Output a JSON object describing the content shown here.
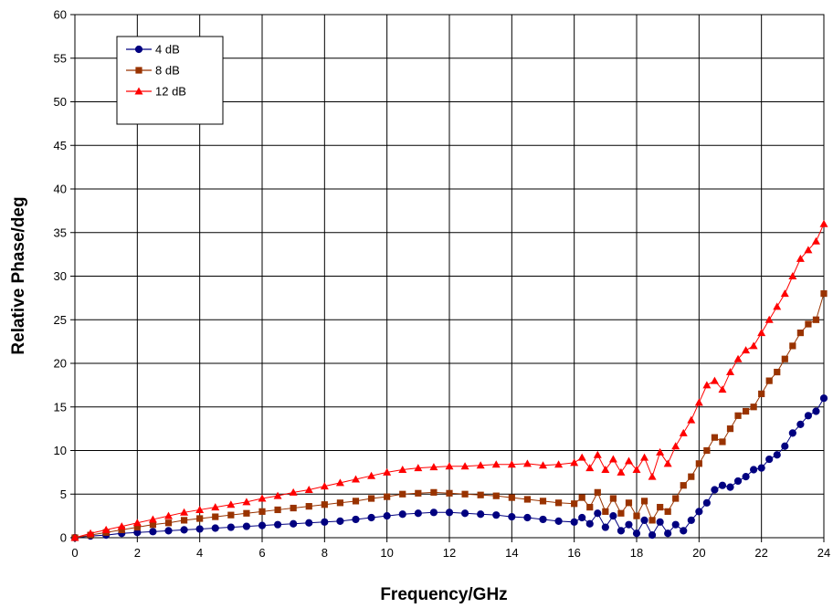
{
  "chart_data": {
    "type": "line",
    "title": "",
    "xlabel": "Frequency/GHz",
    "ylabel": "Relative Phase/deg",
    "xlim": [
      0,
      24
    ],
    "ylim": [
      0,
      60
    ],
    "x_ticks": [
      0,
      2,
      4,
      6,
      8,
      10,
      12,
      14,
      16,
      18,
      20,
      22,
      24
    ],
    "y_ticks": [
      0,
      5,
      10,
      15,
      20,
      25,
      30,
      35,
      40,
      45,
      50,
      55,
      60
    ],
    "grid": true,
    "legend_position": "top-left",
    "series": [
      {
        "name": "4 dB",
        "color": "#000080",
        "marker": "circle",
        "x": [
          0,
          0.5,
          1,
          1.5,
          2,
          2.5,
          3,
          3.5,
          4,
          4.5,
          5,
          5.5,
          6,
          6.5,
          7,
          7.5,
          8,
          8.5,
          9,
          9.5,
          10,
          10.5,
          11,
          11.5,
          12,
          12.5,
          13,
          13.5,
          14,
          14.5,
          15,
          15.5,
          16,
          16.25,
          16.5,
          16.75,
          17,
          17.25,
          17.5,
          17.75,
          18,
          18.25,
          18.5,
          18.75,
          19,
          19.25,
          19.5,
          19.75,
          20,
          20.25,
          20.5,
          20.75,
          21,
          21.25,
          21.5,
          21.75,
          22,
          22.25,
          22.5,
          22.75,
          23,
          23.25,
          23.5,
          23.75,
          24
        ],
        "y": [
          0,
          0.2,
          0.3,
          0.5,
          0.6,
          0.7,
          0.8,
          0.9,
          1.0,
          1.1,
          1.2,
          1.3,
          1.4,
          1.5,
          1.6,
          1.7,
          1.8,
          1.9,
          2.1,
          2.3,
          2.5,
          2.7,
          2.8,
          2.9,
          2.9,
          2.8,
          2.7,
          2.6,
          2.4,
          2.3,
          2.1,
          1.9,
          1.8,
          2.3,
          1.6,
          2.8,
          1.2,
          2.5,
          0.8,
          1.5,
          0.5,
          2.0,
          0.3,
          1.8,
          0.5,
          1.5,
          0.8,
          2.0,
          3.0,
          4.0,
          5.5,
          6.0,
          5.8,
          6.5,
          7.0,
          7.8,
          8.0,
          9.0,
          9.5,
          10.5,
          12.0,
          13.0,
          14.0,
          14.5,
          16.0
        ]
      },
      {
        "name": "8 dB",
        "color": "#993300",
        "marker": "square",
        "x": [
          0,
          0.5,
          1,
          1.5,
          2,
          2.5,
          3,
          3.5,
          4,
          4.5,
          5,
          5.5,
          6,
          6.5,
          7,
          7.5,
          8,
          8.5,
          9,
          9.5,
          10,
          10.5,
          11,
          11.5,
          12,
          12.5,
          13,
          13.5,
          14,
          14.5,
          15,
          15.5,
          16,
          16.25,
          16.5,
          16.75,
          17,
          17.25,
          17.5,
          17.75,
          18,
          18.25,
          18.5,
          18.75,
          19,
          19.25,
          19.5,
          19.75,
          20,
          20.25,
          20.5,
          20.75,
          21,
          21.25,
          21.5,
          21.75,
          22,
          22.25,
          22.5,
          22.75,
          23,
          23.25,
          23.5,
          23.75,
          24
        ],
        "y": [
          0,
          0.3,
          0.6,
          0.9,
          1.2,
          1.5,
          1.7,
          2.0,
          2.2,
          2.4,
          2.6,
          2.8,
          3.0,
          3.2,
          3.4,
          3.6,
          3.8,
          4.0,
          4.2,
          4.5,
          4.7,
          5.0,
          5.1,
          5.2,
          5.1,
          5.0,
          4.9,
          4.8,
          4.6,
          4.4,
          4.2,
          4.0,
          3.9,
          4.6,
          3.5,
          5.2,
          3.0,
          4.5,
          2.8,
          4.0,
          2.5,
          4.2,
          2.0,
          3.5,
          3.0,
          4.5,
          6.0,
          7.0,
          8.5,
          10.0,
          11.5,
          11.0,
          12.5,
          14.0,
          14.5,
          15.0,
          16.5,
          18.0,
          19.0,
          20.5,
          22.0,
          23.5,
          24.5,
          25.0,
          28.0
        ]
      },
      {
        "name": "12 dB",
        "color": "#FF0000",
        "marker": "triangle",
        "x": [
          0,
          0.5,
          1,
          1.5,
          2,
          2.5,
          3,
          3.5,
          4,
          4.5,
          5,
          5.5,
          6,
          6.5,
          7,
          7.5,
          8,
          8.5,
          9,
          9.5,
          10,
          10.5,
          11,
          11.5,
          12,
          12.5,
          13,
          13.5,
          14,
          14.5,
          15,
          15.5,
          16,
          16.25,
          16.5,
          16.75,
          17,
          17.25,
          17.5,
          17.75,
          18,
          18.25,
          18.5,
          18.75,
          19,
          19.25,
          19.5,
          19.75,
          20,
          20.25,
          20.5,
          20.75,
          21,
          21.25,
          21.5,
          21.75,
          22,
          22.25,
          22.5,
          22.75,
          23,
          23.25,
          23.5,
          23.75,
          24
        ],
        "y": [
          0,
          0.5,
          0.9,
          1.3,
          1.7,
          2.1,
          2.5,
          2.9,
          3.2,
          3.5,
          3.8,
          4.1,
          4.5,
          4.8,
          5.2,
          5.5,
          5.9,
          6.3,
          6.7,
          7.1,
          7.5,
          7.8,
          8.0,
          8.1,
          8.2,
          8.2,
          8.3,
          8.4,
          8.4,
          8.5,
          8.3,
          8.4,
          8.6,
          9.2,
          8.0,
          9.5,
          7.8,
          9.0,
          7.5,
          8.8,
          7.8,
          9.2,
          7.0,
          9.8,
          8.5,
          10.5,
          12.0,
          13.5,
          15.5,
          17.5,
          18.0,
          17.0,
          19.0,
          20.5,
          21.5,
          22.0,
          23.5,
          25.0,
          26.5,
          28.0,
          30.0,
          32.0,
          33.0,
          34.0,
          36.0
        ]
      }
    ]
  }
}
